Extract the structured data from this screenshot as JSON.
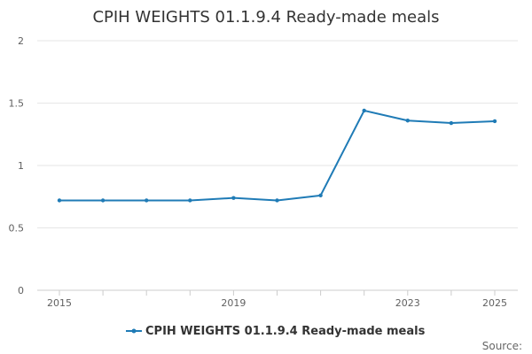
{
  "chart_data": {
    "type": "line",
    "title": "CPIH WEIGHTS 01.1.9.4 Ready-made meals",
    "x": [
      2015,
      2016,
      2017,
      2018,
      2019,
      2020,
      2021,
      2022,
      2023,
      2024,
      2025
    ],
    "series": [
      {
        "name": "CPIH WEIGHTS 01.1.9.4 Ready-made meals",
        "values": [
          0.72,
          0.72,
          0.72,
          0.72,
          0.74,
          0.72,
          0.76,
          1.44,
          1.36,
          1.34,
          1.355
        ]
      }
    ],
    "x_tick_labels": [
      "2015",
      "2019",
      "2023",
      "2025"
    ],
    "y_tick_labels": [
      "0",
      "0.5",
      "1",
      "1.5",
      "2"
    ],
    "ylim": [
      0,
      2
    ],
    "xlim": [
      2015,
      2025
    ],
    "grid": true,
    "legend": "bottom-center",
    "source_label": "Source:",
    "colors": {
      "series": "#1f7bb6",
      "grid": "#e6e6e6",
      "axis": "#cccccc"
    }
  }
}
